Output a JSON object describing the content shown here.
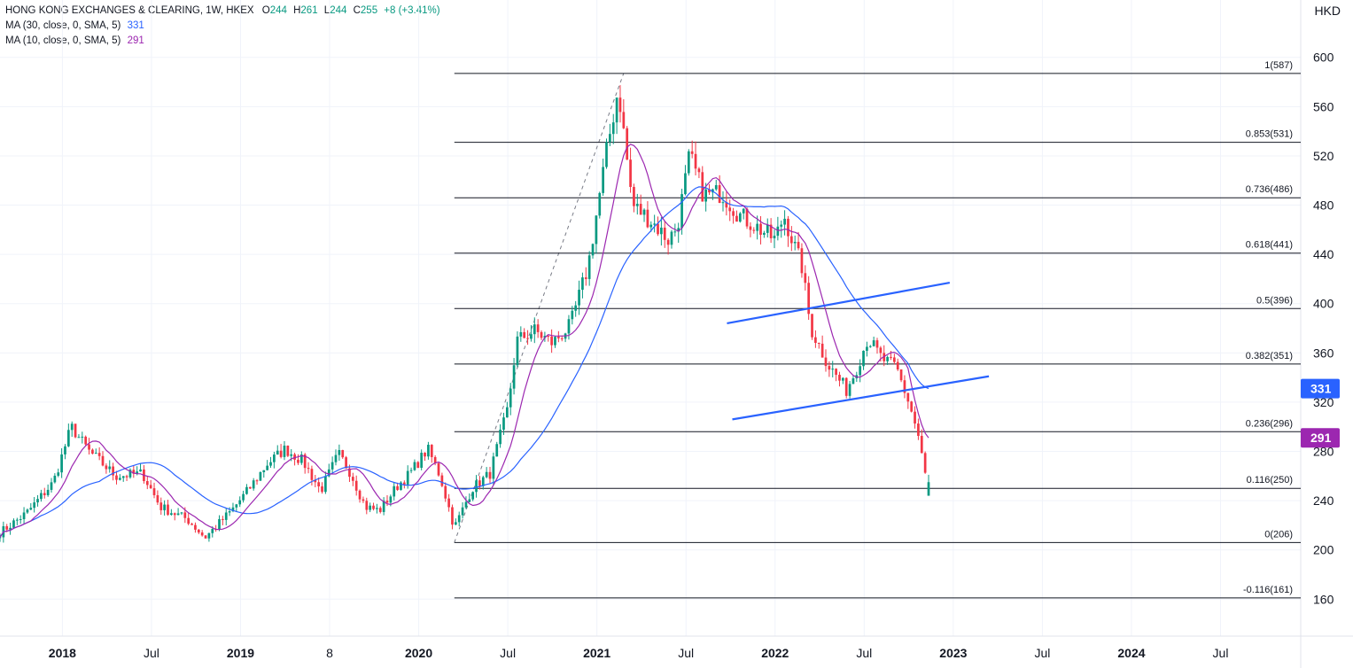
{
  "header": {
    "title": "HONG KONG EXCHANGES & CLEARING, 1W, HKEX",
    "ohlc": [
      {
        "label": "O",
        "value": "244"
      },
      {
        "label": "H",
        "value": "261"
      },
      {
        "label": "L",
        "value": "244"
      },
      {
        "label": "C",
        "value": "255"
      }
    ],
    "change": "+8 (+3.41%)",
    "ma_lines": [
      {
        "label": "MA (30, close, 0, SMA, 5)",
        "value": "331",
        "color": "#2962ff"
      },
      {
        "label": "MA (10, close, 0, SMA, 5)",
        "value": "291",
        "color": "#9c27b0"
      }
    ],
    "currency": "HKD"
  },
  "colors": {
    "up": "#089981",
    "down": "#f23645",
    "ma30": "#2962ff",
    "ma10": "#9c27b0",
    "fib": "#131722",
    "trendline": "#2962ff",
    "grid": "#f0f3fa",
    "axis_text": "#131722"
  },
  "chart_data": {
    "type": "candlestick",
    "title": "HONG KONG EXCHANGES & CLEARING, 1W, HKEX",
    "y_unit": "HKD",
    "ylim": [
      130,
      625
    ],
    "y_ticks": [
      160,
      200,
      240,
      280,
      320,
      360,
      400,
      440,
      480,
      520,
      560,
      600
    ],
    "x_range_years": [
      2017.65,
      2024.95
    ],
    "x_ticks": [
      {
        "t": 2018.0,
        "label": "2018"
      },
      {
        "t": 2018.5,
        "label": "Jul"
      },
      {
        "t": 2019.0,
        "label": "2019"
      },
      {
        "t": 2019.5,
        "label": "8"
      },
      {
        "t": 2020.0,
        "label": "2020"
      },
      {
        "t": 2020.5,
        "label": "Jul"
      },
      {
        "t": 2021.0,
        "label": "2021"
      },
      {
        "t": 2021.5,
        "label": "Jul"
      },
      {
        "t": 2022.0,
        "label": "2022"
      },
      {
        "t": 2022.5,
        "label": "Jul"
      },
      {
        "t": 2023.0,
        "label": "2023"
      },
      {
        "t": 2023.5,
        "label": "Jul"
      },
      {
        "t": 2024.0,
        "label": "2024"
      },
      {
        "t": 2024.5,
        "label": "Jul"
      }
    ],
    "close_keypoints": [
      [
        2017.65,
        214
      ],
      [
        2017.8,
        230
      ],
      [
        2017.95,
        255
      ],
      [
        2018.05,
        300
      ],
      [
        2018.15,
        280
      ],
      [
        2018.3,
        260
      ],
      [
        2018.45,
        262
      ],
      [
        2018.55,
        235
      ],
      [
        2018.7,
        225
      ],
      [
        2018.8,
        210
      ],
      [
        2018.95,
        232
      ],
      [
        2019.05,
        250
      ],
      [
        2019.15,
        270
      ],
      [
        2019.25,
        282
      ],
      [
        2019.35,
        272
      ],
      [
        2019.45,
        248
      ],
      [
        2019.55,
        278
      ],
      [
        2019.62,
        262
      ],
      [
        2019.7,
        235
      ],
      [
        2019.78,
        232
      ],
      [
        2019.88,
        252
      ],
      [
        2019.95,
        262
      ],
      [
        2020.05,
        282
      ],
      [
        2020.12,
        260
      ],
      [
        2020.2,
        218
      ],
      [
        2020.3,
        250
      ],
      [
        2020.4,
        262
      ],
      [
        2020.5,
        315
      ],
      [
        2020.55,
        370
      ],
      [
        2020.65,
        378
      ],
      [
        2020.75,
        368
      ],
      [
        2020.85,
        382
      ],
      [
        2020.95,
        430
      ],
      [
        2021.05,
        520
      ],
      [
        2021.12,
        575
      ],
      [
        2021.2,
        480
      ],
      [
        2021.3,
        468
      ],
      [
        2021.4,
        452
      ],
      [
        2021.45,
        462
      ],
      [
        2021.52,
        520
      ],
      [
        2021.6,
        488
      ],
      [
        2021.7,
        490
      ],
      [
        2021.8,
        472
      ],
      [
        2021.9,
        462
      ],
      [
        2022.0,
        452
      ],
      [
        2022.05,
        472
      ],
      [
        2022.1,
        450
      ],
      [
        2022.15,
        430
      ],
      [
        2022.2,
        380
      ],
      [
        2022.3,
        350
      ],
      [
        2022.4,
        330
      ],
      [
        2022.45,
        345
      ],
      [
        2022.52,
        372
      ],
      [
        2022.6,
        355
      ],
      [
        2022.68,
        348
      ],
      [
        2022.75,
        320
      ],
      [
        2022.8,
        295
      ],
      [
        2022.85,
        255
      ],
      [
        2022.87,
        255
      ]
    ],
    "latest_candle": {
      "open": 244,
      "high": 261,
      "low": 244,
      "close": 255,
      "change": "+8 (+3.41%)"
    },
    "series": [
      {
        "name": "MA (30, close, 0, SMA, 5)",
        "last_value": 331
      },
      {
        "name": "MA (10, close, 0, SMA, 5)",
        "last_value": 291
      }
    ],
    "fib_anchor": {
      "start_t": 2020.2,
      "end_t": 2021.15,
      "low": 206,
      "high": 587
    },
    "fib_levels": [
      {
        "ratio": "1",
        "value": 587
      },
      {
        "ratio": "0.853",
        "value": 531
      },
      {
        "ratio": "0.736",
        "value": 486
      },
      {
        "ratio": "0.618",
        "value": 441
      },
      {
        "ratio": "0.5",
        "value": 396
      },
      {
        "ratio": "0.382",
        "value": 351
      },
      {
        "ratio": "0.236",
        "value": 296
      },
      {
        "ratio": "0.116",
        "value": 250
      },
      {
        "ratio": "0",
        "value": 206
      },
      {
        "ratio": "-0.116",
        "value": 161
      }
    ],
    "trendlines": [
      {
        "t1": 2021.73,
        "v1": 384,
        "t2": 2022.98,
        "v2": 417
      },
      {
        "t1": 2021.76,
        "v1": 306,
        "t2": 2023.2,
        "v2": 341
      }
    ],
    "price_badges": [
      {
        "value": 331,
        "label": "331",
        "color": "#2962ff"
      },
      {
        "value": 291,
        "label": "291",
        "color": "#9c27b0"
      }
    ]
  }
}
